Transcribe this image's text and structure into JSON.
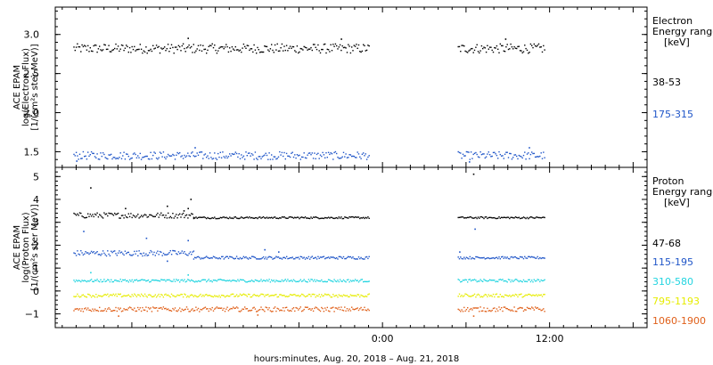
{
  "chart_data": [
    {
      "type": "scatter",
      "ylabel": [
        "ACE EPAM",
        "log(Electron Flux)",
        "[1/(cm²s ster MeV)]"
      ],
      "ylim": [
        1.3,
        3.35
      ],
      "yticks": [
        {
          "v": 3.0,
          "label": "3.0"
        },
        {
          "v": 2.5,
          "label": "2.5"
        },
        {
          "v": 2.0,
          "label": "2.0"
        },
        {
          "v": 1.5,
          "label": "1.5"
        }
      ],
      "legend_title": [
        "Electron",
        "Energy ranges",
        "[keV]"
      ],
      "series": [
        {
          "name": "38-53",
          "color": "#000000",
          "segments": [
            {
              "x0": -22.2,
              "x1": -1.0,
              "base": 2.82,
              "noise": 0.06,
              "spikes": [
                [
                  -14.0,
                  2.95
                ],
                [
                  -3.0,
                  2.94
                ]
              ]
            },
            {
              "x0": 5.4,
              "x1": 11.6,
              "base": 2.82,
              "noise": 0.06,
              "spikes": [
                [
                  8.8,
                  2.94
                ]
              ]
            }
          ]
        },
        {
          "name": "175-315",
          "color": "#1f55c8",
          "segments": [
            {
              "x0": -22.2,
              "x1": -1.0,
              "base": 1.45,
              "noise": 0.05,
              "spikes": [
                [
                  -22.0,
                  1.38
                ],
                [
                  -13.5,
                  1.55
                ]
              ]
            },
            {
              "x0": 5.4,
              "x1": 11.6,
              "base": 1.45,
              "noise": 0.05,
              "spikes": [
                [
                  6.2,
                  1.37
                ],
                [
                  10.5,
                  1.55
                ]
              ]
            }
          ]
        }
      ]
    },
    {
      "type": "scatter",
      "ylabel": [
        "ACE EPAM",
        "log(Proton Flux)",
        "[1/(cm²s ster MeV)]"
      ],
      "ylim": [
        -1.6,
        5.4
      ],
      "yticks": [
        {
          "v": 5,
          "label": "5"
        },
        {
          "v": 4,
          "label": "4"
        },
        {
          "v": 3,
          "label": "3"
        },
        {
          "v": 2,
          "label": "2"
        },
        {
          "v": 1,
          "label": "1"
        },
        {
          "v": 0,
          "label": "0"
        },
        {
          "v": -1,
          "label": "−1"
        }
      ],
      "legend_title": [
        "Proton",
        "Energy ranges",
        "[keV]"
      ],
      "series": [
        {
          "name": "47-68",
          "color": "#000000",
          "segments": [
            {
              "x0": -22.2,
              "x1": -13.6,
              "base": 3.3,
              "noise": 0.12,
              "spikes": [
                [
                  -21.0,
                  4.5
                ],
                [
                  -18.5,
                  3.6
                ],
                [
                  -15.5,
                  3.7
                ],
                [
                  -14.3,
                  3.5
                ],
                [
                  -14.0,
                  3.6
                ],
                [
                  -13.8,
                  4.0
                ]
              ]
            },
            {
              "x0": -13.6,
              "x1": -1.0,
              "base": 3.2,
              "noise": 0.04,
              "spikes": []
            },
            {
              "x0": 5.4,
              "x1": 11.6,
              "base": 3.2,
              "noise": 0.04,
              "spikes": [
                [
                  6.5,
                  5.1
                ]
              ]
            }
          ]
        },
        {
          "name": "115-195",
          "color": "#1f55c8",
          "segments": [
            {
              "x0": -22.2,
              "x1": -13.6,
              "base": 1.65,
              "noise": 0.12,
              "spikes": [
                [
                  -21.5,
                  2.6
                ],
                [
                  -17.0,
                  2.3
                ],
                [
                  -14.0,
                  2.2
                ],
                [
                  -15.5,
                  1.3
                ]
              ]
            },
            {
              "x0": -13.6,
              "x1": -1.0,
              "base": 1.45,
              "noise": 0.06,
              "spikes": [
                [
                  -8.5,
                  1.8
                ],
                [
                  -7.5,
                  1.7
                ]
              ]
            },
            {
              "x0": 5.4,
              "x1": 11.6,
              "base": 1.45,
              "noise": 0.05,
              "spikes": [
                [
                  5.5,
                  1.7
                ],
                [
                  6.6,
                  2.7
                ]
              ]
            }
          ]
        },
        {
          "name": "310-580",
          "color": "#22d4e0",
          "segments": [
            {
              "x0": -22.2,
              "x1": -1.0,
              "base": 0.45,
              "noise": 0.06,
              "spikes": [
                [
                  -21.0,
                  0.8
                ],
                [
                  -14.0,
                  0.7
                ]
              ]
            },
            {
              "x0": 5.4,
              "x1": 11.6,
              "base": 0.45,
              "noise": 0.06,
              "spikes": []
            }
          ]
        },
        {
          "name": "795-1193",
          "color": "#e6ec00",
          "segments": [
            {
              "x0": -22.2,
              "x1": -1.0,
              "base": -0.2,
              "noise": 0.07,
              "spikes": []
            },
            {
              "x0": 5.4,
              "x1": 11.6,
              "base": -0.2,
              "noise": 0.07,
              "spikes": []
            }
          ]
        },
        {
          "name": "1060-1900",
          "color": "#e0601a",
          "segments": [
            {
              "x0": -22.2,
              "x1": -1.0,
              "base": -0.8,
              "noise": 0.1,
              "spikes": [
                [
                  -19.0,
                  -1.1
                ],
                [
                  -9.0,
                  -1.05
                ]
              ]
            },
            {
              "x0": 5.4,
              "x1": 11.6,
              "base": -0.8,
              "noise": 0.1,
              "spikes": [
                [
                  6.5,
                  -1.1
                ]
              ]
            }
          ]
        }
      ]
    }
  ],
  "xaxis": {
    "xlim": [
      -23.5,
      19.0
    ],
    "ticks": [
      {
        "v": 0,
        "label": "0:00"
      },
      {
        "v": 12,
        "label": "12:00"
      }
    ],
    "minor_step": 1,
    "label": "hours:minutes, Aug. 20, 2018 – Aug. 21, 2018"
  }
}
